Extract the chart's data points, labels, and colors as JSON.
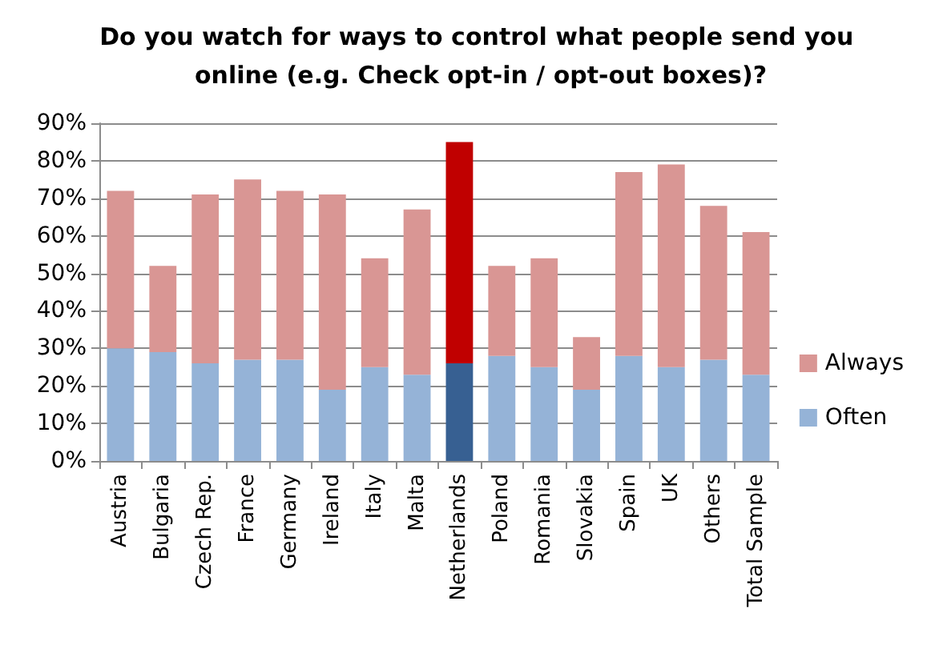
{
  "chart_data": {
    "type": "bar",
    "title": "Do you watch for ways to control what people send you online (e.g. Check opt-in / opt-out boxes)?",
    "categories": [
      "Austria",
      "Bulgaria",
      "Czech Rep.",
      "France",
      "Germany",
      "Ireland",
      "Italy",
      "Malta",
      "Netherlands",
      "Poland",
      "Romania",
      "Slovakia",
      "Spain",
      "UK",
      "Others",
      "Total Sample"
    ],
    "stacked": true,
    "series": [
      {
        "name": "Often",
        "color": "#95b3d7",
        "colors": [
          "#95b3d7",
          "#95b3d7",
          "#95b3d7",
          "#95b3d7",
          "#95b3d7",
          "#95b3d7",
          "#95b3d7",
          "#95b3d7",
          "#376092",
          "#95b3d7",
          "#95b3d7",
          "#95b3d7",
          "#95b3d7",
          "#95b3d7",
          "#95b3d7",
          "#95b3d7"
        ],
        "values": [
          30,
          29,
          26,
          27,
          27,
          19,
          25,
          23,
          26,
          28,
          25,
          19,
          28,
          25,
          27,
          23
        ]
      },
      {
        "name": "Always",
        "color": "#d99694",
        "colors": [
          "#d99694",
          "#d99694",
          "#d99694",
          "#d99694",
          "#d99694",
          "#d99694",
          "#d99694",
          "#d99694",
          "#c00000",
          "#d99694",
          "#d99694",
          "#d99694",
          "#d99694",
          "#d99694",
          "#d99694",
          "#d99694"
        ],
        "values": [
          42,
          23,
          45,
          48,
          45,
          52,
          29,
          44,
          59,
          24,
          29,
          14,
          49,
          54,
          41,
          38
        ]
      }
    ],
    "ylim": [
      0,
      90
    ],
    "yticks": [
      {
        "value": 0,
        "label": "0%"
      },
      {
        "value": 10,
        "label": "10%"
      },
      {
        "value": 20,
        "label": "20%"
      },
      {
        "value": 30,
        "label": "30%"
      },
      {
        "value": 40,
        "label": "40%"
      },
      {
        "value": 50,
        "label": "50%"
      },
      {
        "value": 60,
        "label": "60%"
      },
      {
        "value": 70,
        "label": "70%"
      },
      {
        "value": 80,
        "label": "80%"
      },
      {
        "value": 90,
        "label": "90%"
      }
    ],
    "grid": "y",
    "legend": "right"
  }
}
